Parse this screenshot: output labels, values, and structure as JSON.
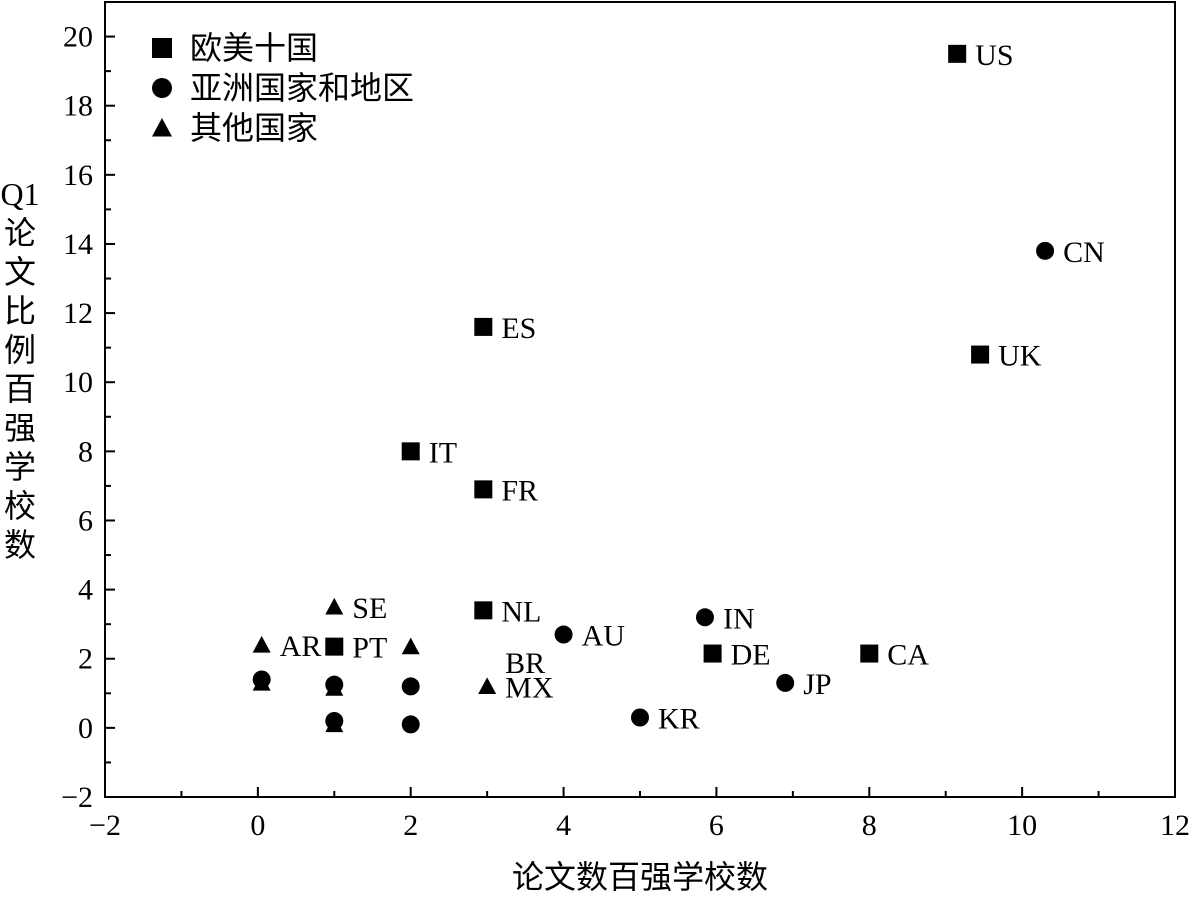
{
  "chart_data": {
    "type": "scatter",
    "title": "",
    "xlabel": "论文数百强学校数",
    "ylabel": "Q1论文比例百强学校数",
    "ylabel_lines": [
      "Q1",
      "论",
      "文",
      "比",
      "例",
      "百",
      "强",
      "学",
      "校",
      "数"
    ],
    "xlim": [
      -2,
      12
    ],
    "ylim": [
      -2,
      21
    ],
    "xticks": [
      -2,
      0,
      2,
      4,
      6,
      8,
      10,
      12
    ],
    "yticks": [
      -2,
      0,
      2,
      4,
      6,
      8,
      10,
      12,
      14,
      16,
      18,
      20
    ],
    "grid": false,
    "legend_position": "top-left",
    "series": [
      {
        "name": "欧美十国",
        "marker": "square",
        "points": [
          {
            "x": 9.15,
            "y": 19.5,
            "label": "US"
          },
          {
            "x": 2.95,
            "y": 11.6,
            "label": "ES"
          },
          {
            "x": 9.45,
            "y": 10.8,
            "label": "UK"
          },
          {
            "x": 2.0,
            "y": 8.0,
            "label": "IT"
          },
          {
            "x": 2.95,
            "y": 6.9,
            "label": "FR"
          },
          {
            "x": 2.95,
            "y": 3.4,
            "label": "NL"
          },
          {
            "x": 1.0,
            "y": 2.35,
            "label": "PT"
          },
          {
            "x": 5.95,
            "y": 2.15,
            "label": "DE"
          },
          {
            "x": 8.0,
            "y": 2.15,
            "label": "CA"
          }
        ]
      },
      {
        "name": "亚洲国家和地区",
        "marker": "circle",
        "points": [
          {
            "x": 10.3,
            "y": 13.8,
            "label": "CN"
          },
          {
            "x": 5.85,
            "y": 3.2,
            "label": "IN"
          },
          {
            "x": 4.0,
            "y": 2.7,
            "label": "AU"
          },
          {
            "x": 6.9,
            "y": 1.3,
            "label": "JP"
          },
          {
            "x": 5.0,
            "y": 0.3,
            "label": "KR"
          },
          {
            "x": 0.05,
            "y": 1.4,
            "label": ""
          },
          {
            "x": 1.0,
            "y": 1.25,
            "label": ""
          },
          {
            "x": 2.0,
            "y": 1.2,
            "label": ""
          },
          {
            "x": 1.0,
            "y": 0.2,
            "label": ""
          },
          {
            "x": 2.0,
            "y": 0.1,
            "label": ""
          }
        ]
      },
      {
        "name": "其他国家",
        "marker": "triangle",
        "points": [
          {
            "x": 1.0,
            "y": 3.5,
            "label": "SE"
          },
          {
            "x": 0.05,
            "y": 2.4,
            "label": "AR"
          },
          {
            "x": 2.0,
            "y": 2.35,
            "label": ""
          },
          {
            "x": 3.0,
            "y": 1.2,
            "label": "MX"
          },
          {
            "x": 0.05,
            "y": 1.3,
            "label": ""
          },
          {
            "x": 1.0,
            "y": 1.15,
            "label": ""
          },
          {
            "x": 1.0,
            "y": 0.1,
            "label": ""
          }
        ]
      }
    ],
    "annotations": [
      {
        "text": "BR",
        "x": 3.0,
        "y": 1.9
      }
    ]
  }
}
